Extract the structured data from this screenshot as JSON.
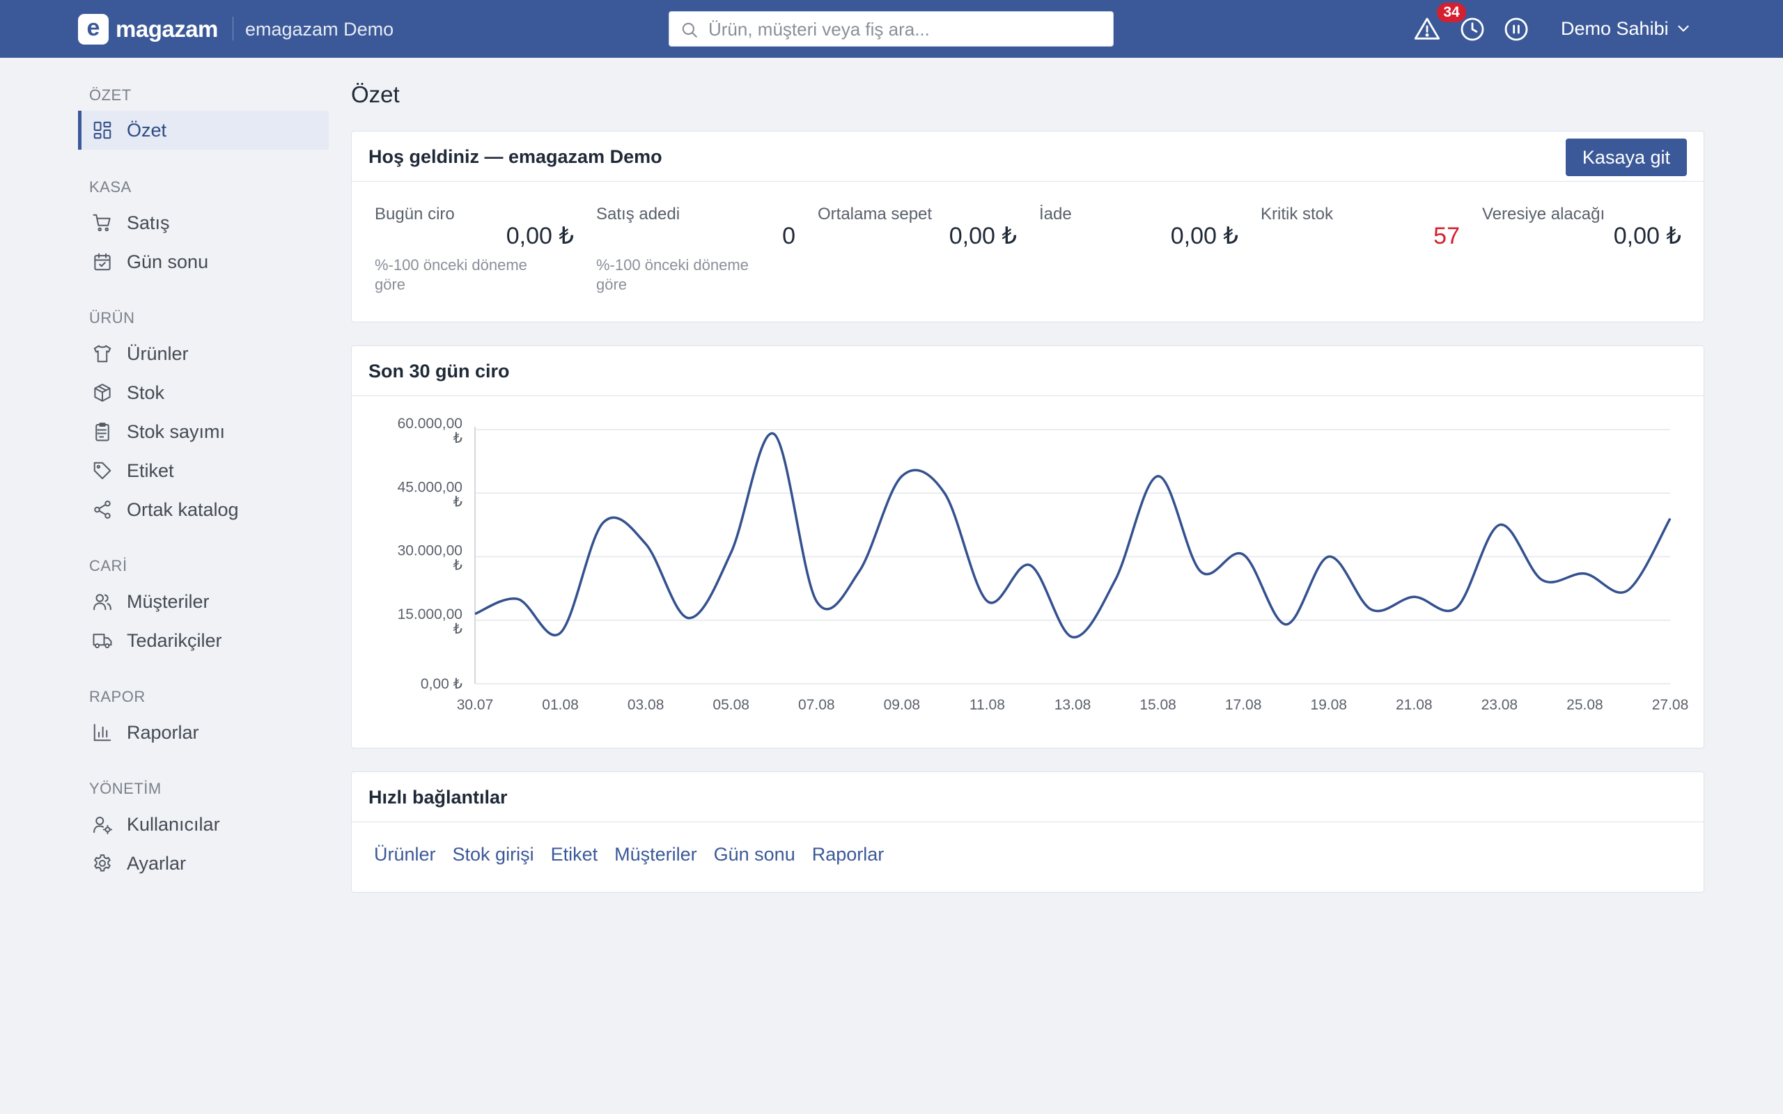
{
  "header": {
    "logo_letter": "e",
    "logo_text": "magazam",
    "store_name": "emagazam Demo",
    "search_placeholder": "Ürün, müşteri veya fiş ara...",
    "notification_count": "34",
    "user_name": "Demo Sahibi",
    "bg_color": "#3b5998"
  },
  "sidebar": {
    "sections": [
      {
        "title": "ÖZET",
        "items": [
          {
            "label": "Özet",
            "icon": "dashboard-grid-icon",
            "active": true
          }
        ]
      },
      {
        "title": "KASA",
        "items": [
          {
            "label": "Satış",
            "icon": "shopping-cart-icon"
          },
          {
            "label": "Gün sonu",
            "icon": "calendar-check-icon"
          }
        ]
      },
      {
        "title": "ÜRÜN",
        "items": [
          {
            "label": "Ürünler",
            "icon": "shirt-icon"
          },
          {
            "label": "Stok",
            "icon": "box-icon"
          },
          {
            "label": "Stok sayımı",
            "icon": "clipboard-list-icon"
          },
          {
            "label": "Etiket",
            "icon": "tag-icon"
          },
          {
            "label": "Ortak katalog",
            "icon": "share-icon"
          }
        ]
      },
      {
        "title": "CARİ",
        "items": [
          {
            "label": "Müşteriler",
            "icon": "users-icon"
          },
          {
            "label": "Tedarikçiler",
            "icon": "truck-icon"
          }
        ]
      },
      {
        "title": "RAPOR",
        "items": [
          {
            "label": "Raporlar",
            "icon": "bar-chart-icon"
          }
        ]
      },
      {
        "title": "YÖNETİM",
        "items": [
          {
            "label": "Kullanıcılar",
            "icon": "user-cog-icon"
          },
          {
            "label": "Ayarlar",
            "icon": "gear-icon"
          }
        ]
      }
    ]
  },
  "main": {
    "page_title": "Özet",
    "welcome": {
      "title": "Hoş geldiniz — emagazam Demo",
      "button": "Kasaya git",
      "stats": [
        {
          "label": "Bugün ciro",
          "value": "0,00 ₺",
          "sub": "%-100 önceki döneme göre"
        },
        {
          "label": "Satış adedi",
          "value": "0",
          "sub": "%-100 önceki döneme göre"
        },
        {
          "label": "Ortalama sepet",
          "value": "0,00 ₺",
          "sub": ""
        },
        {
          "label": "İade",
          "value": "0,00 ₺",
          "sub": ""
        },
        {
          "label": "Kritik stok",
          "value": "57",
          "sub": "",
          "alert": true
        },
        {
          "label": "Veresiye alacağı",
          "value": "0,00 ₺",
          "sub": ""
        }
      ]
    },
    "revenue_card": {
      "title": "Son 30 gün ciro"
    },
    "quick_links": {
      "title": "Hızlı bağlantılar",
      "links": [
        "Ürünler",
        "Stok girişi",
        "Etiket",
        "Müşteriler",
        "Gün sonu",
        "Raporlar"
      ]
    }
  },
  "chart_data": {
    "type": "line",
    "title": "",
    "xlabel": "",
    "ylabel": "",
    "x": [
      "30.07",
      "31.07",
      "01.08",
      "02.08",
      "03.08",
      "04.08",
      "05.08",
      "06.08",
      "07.08",
      "08.08",
      "09.08",
      "10.08",
      "11.08",
      "12.08",
      "13.08",
      "14.08",
      "15.08",
      "16.08",
      "17.08",
      "18.08",
      "19.08",
      "20.08",
      "21.08",
      "22.08",
      "23.08",
      "24.08",
      "25.08",
      "26.08",
      "27.08"
    ],
    "x_tick_labels": [
      "30.07",
      "01.08",
      "03.08",
      "05.08",
      "07.08",
      "09.08",
      "11.08",
      "13.08",
      "15.08",
      "17.08",
      "19.08",
      "21.08",
      "23.08",
      "25.08",
      "27.08"
    ],
    "series": [
      {
        "values": [
          16500,
          20000,
          12000,
          38000,
          33000,
          15500,
          31000,
          59000,
          19500,
          26500,
          49000,
          45000,
          19500,
          28000,
          11000,
          24500,
          49000,
          26500,
          30500,
          14000,
          30000,
          17500,
          20500,
          18000,
          37500,
          24500,
          26000,
          22000,
          39000
        ],
        "color": "#34518f"
      }
    ],
    "ylim": [
      0,
      60000
    ],
    "y_ticks": [
      {
        "value": 0,
        "label": "0,00 ₺"
      },
      {
        "value": 15000,
        "label": "15.000,00 ₺"
      },
      {
        "value": 30000,
        "label": "30.000,00 ₺"
      },
      {
        "value": 45000,
        "label": "45.000,00 ₺"
      },
      {
        "value": 60000,
        "label": "60.000,00 ₺"
      }
    ],
    "grid": true,
    "legend": "none"
  }
}
